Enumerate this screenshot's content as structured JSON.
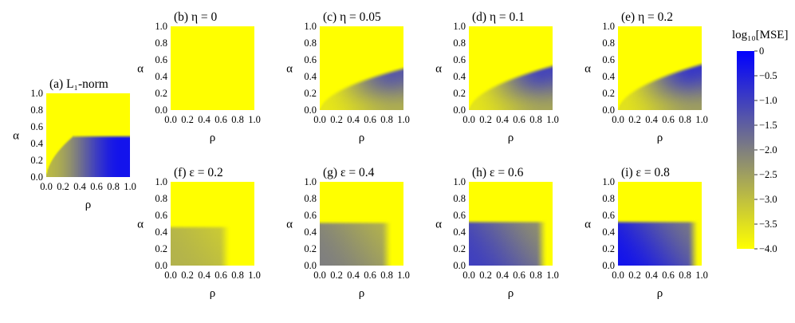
{
  "chart_data": [
    {
      "type": "heatmap",
      "id": "a",
      "title": "(a) L₁-norm",
      "xlabel": "ρ",
      "ylabel": "α",
      "xlim": [
        0,
        1
      ],
      "ylim": [
        0,
        1
      ],
      "xticks": [
        "0.0",
        "0.2",
        "0.4",
        "0.6",
        "0.8",
        "1.0"
      ],
      "yticks": [
        "0.0",
        "0.2",
        "0.4",
        "0.6",
        "0.8",
        "1.0"
      ],
      "field": {
        "kind": "l1norm",
        "alpha_max": 0.5,
        "min_log10_mse": -0.3
      }
    },
    {
      "type": "heatmap",
      "id": "b",
      "title": "(b) η = 0",
      "xlabel": "ρ",
      "ylabel": "α",
      "xlim": [
        0,
        1
      ],
      "ylim": [
        0,
        1
      ],
      "xticks": [
        "0.0",
        "0.2",
        "0.4",
        "0.6",
        "0.8",
        "1.0"
      ],
      "yticks": [
        "0.0",
        "0.2",
        "0.4",
        "0.6",
        "0.8",
        "1.0"
      ],
      "field": {
        "kind": "eta",
        "eta": 0,
        "alpha_max": 0,
        "min_log10_mse": -4.0
      }
    },
    {
      "type": "heatmap",
      "id": "c",
      "title": "(c) η = 0.05",
      "xlabel": "ρ",
      "ylabel": "α",
      "xlim": [
        0,
        1
      ],
      "ylim": [
        0,
        1
      ],
      "xticks": [
        "0.0",
        "0.2",
        "0.4",
        "0.6",
        "0.8",
        "1.0"
      ],
      "yticks": [
        "0.0",
        "0.2",
        "0.4",
        "0.6",
        "0.8",
        "1.0"
      ],
      "field": {
        "kind": "eta",
        "eta": 0.05,
        "alpha_max": 0.52,
        "min_log10_mse": -1.4
      }
    },
    {
      "type": "heatmap",
      "id": "d",
      "title": "(d) η = 0.1",
      "xlabel": "ρ",
      "ylabel": "α",
      "xlim": [
        0,
        1
      ],
      "ylim": [
        0,
        1
      ],
      "xticks": [
        "0.0",
        "0.2",
        "0.4",
        "0.6",
        "0.8",
        "1.0"
      ],
      "yticks": [
        "0.0",
        "0.2",
        "0.4",
        "0.6",
        "0.8",
        "1.0"
      ],
      "field": {
        "kind": "eta",
        "eta": 0.1,
        "alpha_max": 0.55,
        "min_log10_mse": -1.1
      }
    },
    {
      "type": "heatmap",
      "id": "e",
      "title": "(e) η = 0.2",
      "xlabel": "ρ",
      "ylabel": "α",
      "xlim": [
        0,
        1
      ],
      "ylim": [
        0,
        1
      ],
      "xticks": [
        "0.0",
        "0.2",
        "0.4",
        "0.6",
        "0.8",
        "1.0"
      ],
      "yticks": [
        "0.0",
        "0.2",
        "0.4",
        "0.6",
        "0.8",
        "1.0"
      ],
      "field": {
        "kind": "eta",
        "eta": 0.2,
        "alpha_max": 0.57,
        "min_log10_mse": -0.9
      }
    },
    {
      "type": "heatmap",
      "id": "f",
      "title": "(f) ε = 0.2",
      "xlabel": "ρ",
      "ylabel": "α",
      "xlim": [
        0,
        1
      ],
      "ylim": [
        0,
        1
      ],
      "xticks": [
        "0.0",
        "0.2",
        "0.4",
        "0.6",
        "0.8",
        "1.0"
      ],
      "yticks": [
        "0.0",
        "0.2",
        "0.4",
        "0.6",
        "0.8",
        "1.0"
      ],
      "field": {
        "kind": "eps",
        "eps": 0.2,
        "alpha_max": 0.48,
        "rho_max": 0.7,
        "min_log10_mse": -2.8
      }
    },
    {
      "type": "heatmap",
      "id": "g",
      "title": "(g) ε = 0.4",
      "xlabel": "ρ",
      "ylabel": "α",
      "xlim": [
        0,
        1
      ],
      "ylim": [
        0,
        1
      ],
      "xticks": [
        "0.0",
        "0.2",
        "0.4",
        "0.6",
        "0.8",
        "1.0"
      ],
      "yticks": [
        "0.0",
        "0.2",
        "0.4",
        "0.6",
        "0.8",
        "1.0"
      ],
      "field": {
        "kind": "eps",
        "eps": 0.4,
        "alpha_max": 0.53,
        "rho_max": 0.85,
        "min_log10_mse": -2.0
      }
    },
    {
      "type": "heatmap",
      "id": "h",
      "title": "(h) ε = 0.6",
      "xlabel": "ρ",
      "ylabel": "α",
      "xlim": [
        0,
        1
      ],
      "ylim": [
        0,
        1
      ],
      "xticks": [
        "0.0",
        "0.2",
        "0.4",
        "0.6",
        "0.8",
        "1.0"
      ],
      "yticks": [
        "0.0",
        "0.2",
        "0.4",
        "0.6",
        "0.8",
        "1.0"
      ],
      "field": {
        "kind": "eps",
        "eps": 0.6,
        "alpha_max": 0.54,
        "rho_max": 0.92,
        "min_log10_mse": -1.0
      }
    },
    {
      "type": "heatmap",
      "id": "i",
      "title": "(i) ε = 0.8",
      "xlabel": "ρ",
      "ylabel": "α",
      "xlim": [
        0,
        1
      ],
      "ylim": [
        0,
        1
      ],
      "xticks": [
        "0.0",
        "0.2",
        "0.4",
        "0.6",
        "0.8",
        "1.0"
      ],
      "yticks": [
        "0.0",
        "0.2",
        "0.4",
        "0.6",
        "0.8",
        "1.0"
      ],
      "field": {
        "kind": "eps",
        "eps": 0.8,
        "alpha_max": 0.54,
        "rho_max": 0.95,
        "min_log10_mse": -0.3
      }
    }
  ],
  "colorbar": {
    "label": "log₁₀[MSE]",
    "range": [
      -4.0,
      0
    ],
    "ticks": [
      "0",
      "−0.5",
      "−1.0",
      "−1.5",
      "−2.0",
      "−2.5",
      "−3.0",
      "−3.5",
      "−4.0"
    ],
    "colors": {
      "low": "#ffff00",
      "mid": "#7f7f7f",
      "high": "#0000ff"
    }
  }
}
